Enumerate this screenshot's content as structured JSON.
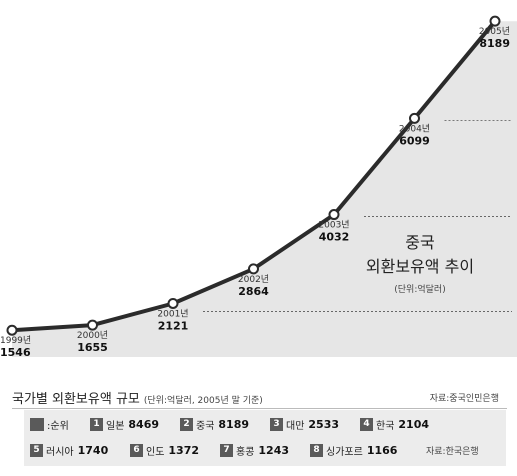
{
  "chart_data": {
    "type": "line",
    "title": "중국\n외환보유액 추이",
    "title_lines": [
      "중국",
      "외환보유액 추이"
    ],
    "unit": "(단위:억달러)",
    "x": [
      "1999년",
      "2000년",
      "2001년",
      "2002년",
      "2003년",
      "2004년",
      "2005년"
    ],
    "values": [
      1546,
      1655,
      2121,
      2864,
      4032,
      6099,
      8189
    ],
    "value_labels": [
      "1546",
      "1655",
      "2121",
      "2864",
      "4032",
      "6099",
      "8189"
    ],
    "xlim_index": [
      0,
      6
    ],
    "ylim": [
      1400,
      8300
    ],
    "grid": false,
    "line_color": "#2b2b2b",
    "fill_color": "#e6e6e6"
  },
  "ranking": {
    "title": "국가별 외환보유액 규모",
    "unit": "(단위:억달러, 2005년 말 기준)",
    "source_top": "자료:중국인민은행",
    "legend_label": ":순위",
    "source_bottom": "자료:한국은행",
    "badge_color": "#5a5a5a",
    "row1": [
      {
        "rank": "1",
        "country": "일본",
        "value": "8469"
      },
      {
        "rank": "2",
        "country": "중국",
        "value": "8189"
      },
      {
        "rank": "3",
        "country": "대만",
        "value": "2533"
      },
      {
        "rank": "4",
        "country": "한국",
        "value": "2104"
      }
    ],
    "row2": [
      {
        "rank": "5",
        "country": "러시아",
        "value": "1740"
      },
      {
        "rank": "6",
        "country": "인도",
        "value": "1372"
      },
      {
        "rank": "7",
        "country": "홍콩",
        "value": "1243"
      },
      {
        "rank": "8",
        "country": "싱가포르",
        "value": "1166"
      }
    ]
  }
}
